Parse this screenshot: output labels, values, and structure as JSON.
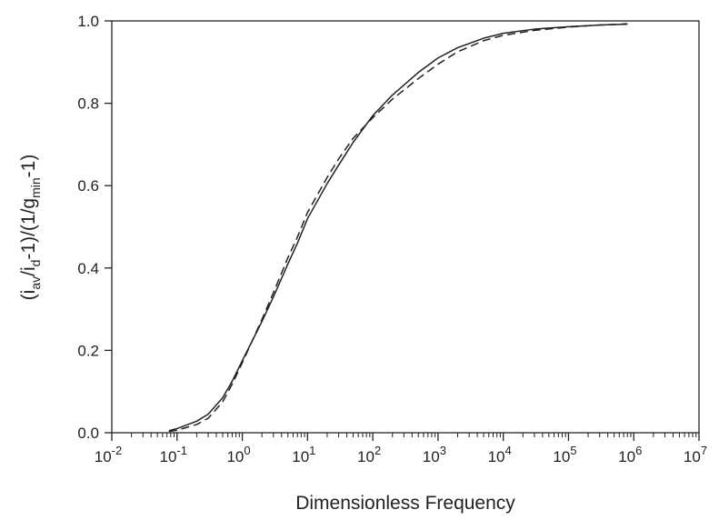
{
  "chart_data": {
    "type": "line",
    "xscale": "log",
    "xlabel": "Dimensionless Frequency",
    "ylabel": {
      "parts": [
        {
          "t": "(i"
        },
        {
          "t": "av",
          "sub": true
        },
        {
          "t": "/i"
        },
        {
          "t": "d",
          "sub": true
        },
        {
          "t": "-1)/(1/g"
        },
        {
          "t": "min",
          "sub": true
        },
        {
          "t": "-1)"
        }
      ]
    },
    "xlim": [
      0.01,
      10000000
    ],
    "ylim": [
      0,
      1
    ],
    "xticks": [
      {
        "base": "10",
        "exp": "-2",
        "value": 0.01
      },
      {
        "base": "10",
        "exp": "-1",
        "value": 0.1
      },
      {
        "base": "10",
        "exp": "0",
        "value": 1
      },
      {
        "base": "10",
        "exp": "1",
        "value": 10
      },
      {
        "base": "10",
        "exp": "2",
        "value": 100
      },
      {
        "base": "10",
        "exp": "3",
        "value": 1000
      },
      {
        "base": "10",
        "exp": "4",
        "value": 10000
      },
      {
        "base": "10",
        "exp": "5",
        "value": 100000
      },
      {
        "base": "10",
        "exp": "6",
        "value": 1000000
      },
      {
        "base": "10",
        "exp": "7",
        "value": 10000000
      }
    ],
    "yticks": [
      {
        "label": "0.0",
        "value": 0.0
      },
      {
        "label": "0.2",
        "value": 0.2
      },
      {
        "label": "0.4",
        "value": 0.4
      },
      {
        "label": "0.6",
        "value": 0.6
      },
      {
        "label": "0.8",
        "value": 0.8
      },
      {
        "label": "1.0",
        "value": 1.0
      }
    ],
    "grid": false,
    "series": [
      {
        "style": "solid",
        "color": "#222222",
        "points": [
          [
            0.075,
            0.005
          ],
          [
            0.1,
            0.01
          ],
          [
            0.2,
            0.028
          ],
          [
            0.3,
            0.045
          ],
          [
            0.5,
            0.085
          ],
          [
            0.7,
            0.125
          ],
          [
            1,
            0.175
          ],
          [
            2,
            0.27
          ],
          [
            3,
            0.33
          ],
          [
            5,
            0.41
          ],
          [
            7,
            0.46
          ],
          [
            10,
            0.52
          ],
          [
            20,
            0.605
          ],
          [
            30,
            0.65
          ],
          [
            50,
            0.705
          ],
          [
            100,
            0.77
          ],
          [
            200,
            0.82
          ],
          [
            500,
            0.875
          ],
          [
            1000,
            0.91
          ],
          [
            2000,
            0.935
          ],
          [
            5000,
            0.958
          ],
          [
            10000,
            0.97
          ],
          [
            30000,
            0.98
          ],
          [
            100000,
            0.986
          ],
          [
            300000,
            0.99
          ],
          [
            800000,
            0.992
          ]
        ]
      },
      {
        "style": "dashed",
        "color": "#222222",
        "points": [
          [
            0.075,
            0.003
          ],
          [
            0.1,
            0.006
          ],
          [
            0.2,
            0.02
          ],
          [
            0.3,
            0.035
          ],
          [
            0.5,
            0.075
          ],
          [
            0.7,
            0.118
          ],
          [
            1,
            0.17
          ],
          [
            2,
            0.275
          ],
          [
            3,
            0.34
          ],
          [
            5,
            0.425
          ],
          [
            7,
            0.475
          ],
          [
            10,
            0.535
          ],
          [
            20,
            0.62
          ],
          [
            30,
            0.665
          ],
          [
            50,
            0.715
          ],
          [
            100,
            0.765
          ],
          [
            200,
            0.81
          ],
          [
            500,
            0.86
          ],
          [
            1000,
            0.895
          ],
          [
            2000,
            0.925
          ],
          [
            5000,
            0.952
          ],
          [
            10000,
            0.965
          ],
          [
            30000,
            0.977
          ],
          [
            100000,
            0.985
          ],
          [
            300000,
            0.99
          ],
          [
            800000,
            0.993
          ]
        ]
      }
    ]
  }
}
